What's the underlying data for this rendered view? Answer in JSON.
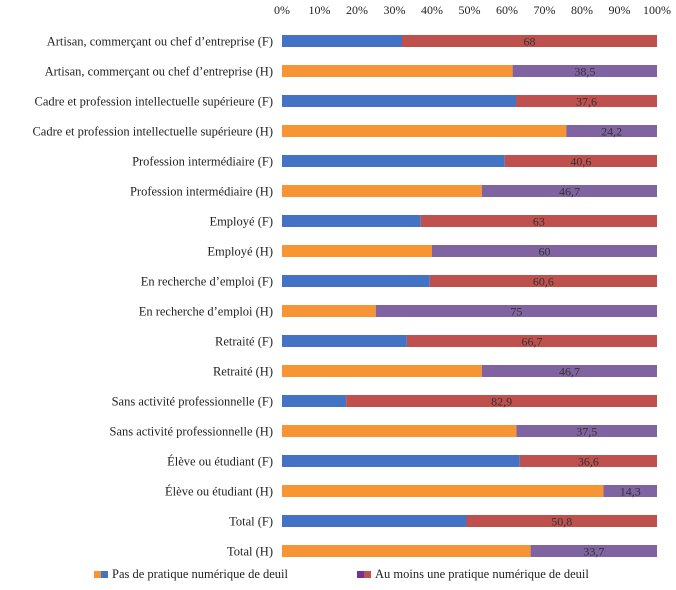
{
  "chart_data": {
    "type": "bar",
    "orientation": "horizontal",
    "stacked": "100%",
    "xlim": [
      0,
      100
    ],
    "x_ticks": [
      "0%",
      "10%",
      "20%",
      "30%",
      "40%",
      "50%",
      "60%",
      "70%",
      "80%",
      "90%",
      "100%"
    ],
    "x_axis_position": "top",
    "grid": false,
    "legend_position": "bottom",
    "categories": [
      "Artisan, commerçant ou chef d’entreprise (F)",
      "Artisan, commerçant ou chef d’entreprise (H)",
      "Cadre et profession intellectuelle supérieure (F)",
      "Cadre et profession intellectuelle supérieure (H)",
      "Profession intermédiaire (F)",
      "Profession intermédiaire (H)",
      "Employé (F)",
      "Employé (H)",
      "En recherche d’emploi (F)",
      "En recherche d’emploi (H)",
      "Retraité (F)",
      "Retraité (H)",
      "Sans activité professionnelle (F)",
      "Sans activité professionnelle (H)",
      "Élève ou étudiant (F)",
      "Élève ou étudiant (H)",
      "Total (F)",
      "Total (H)"
    ],
    "series": [
      {
        "name": "Pas de pratique numérique de deuil",
        "values": [
          32,
          61.5,
          62.4,
          75.8,
          59.4,
          53.3,
          37,
          40,
          39.4,
          25,
          33.3,
          53.3,
          17.1,
          62.5,
          63.4,
          85.7,
          49.2,
          66.3
        ],
        "colors_by_group": {
          "F": "#4472C4",
          "H": "#F79433"
        }
      },
      {
        "name": "Au moins une pratique numérique de deuil",
        "values": [
          68,
          38.5,
          37.6,
          24.2,
          40.6,
          46.7,
          63,
          60,
          60.6,
          75,
          66.7,
          46.7,
          82.9,
          37.5,
          36.6,
          14.3,
          50.8,
          33.7
        ],
        "labels": [
          "68",
          "38,5",
          "37,6",
          "24,2",
          "40,6",
          "46,7",
          "63",
          "60",
          "60,6",
          "75",
          "66,7",
          "46,7",
          "82,9",
          "37,5",
          "36,6",
          "14,3",
          "50,8",
          "33,7"
        ],
        "colors_by_group": {
          "F": "#C0504D",
          "H": "#8064A2"
        }
      }
    ],
    "groups": [
      "F",
      "H",
      "F",
      "H",
      "F",
      "H",
      "F",
      "H",
      "F",
      "H",
      "F",
      "H",
      "F",
      "H",
      "F",
      "H",
      "F",
      "H"
    ]
  },
  "legend": {
    "item1_label": "Pas de pratique numérique de deuil",
    "item1_swatches": [
      "#F79433",
      "#4472C4"
    ],
    "item2_label": "Au moins une pratique numérique de deuil",
    "item2_swatches": [
      "#7030A0",
      "#C0504D"
    ]
  }
}
